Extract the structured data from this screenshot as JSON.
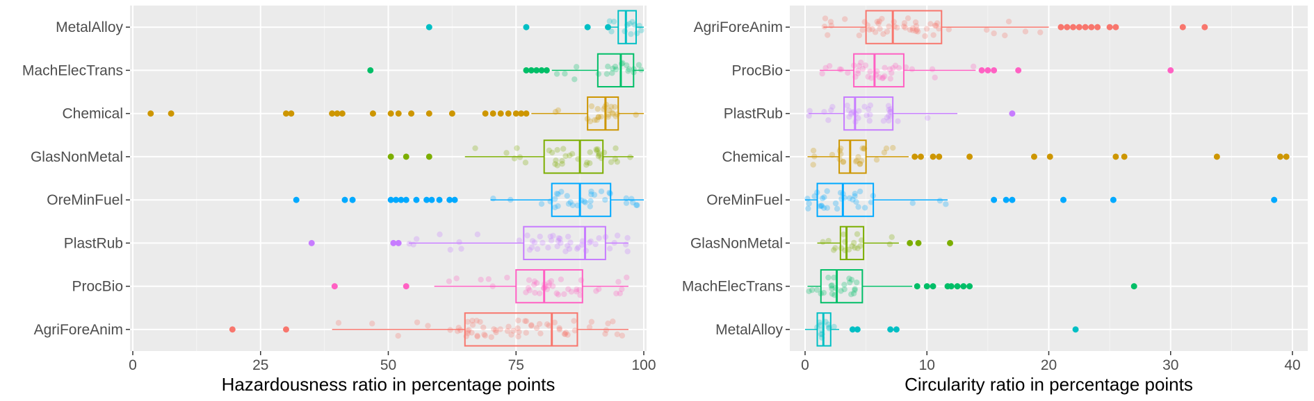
{
  "colors": {
    "panel_bg": "#ebebeb",
    "grid_major": "#ffffff",
    "grid_minor": "#f5f5f5",
    "tick_text": "#4d4d4d",
    "AgriForeAnim": "#f8766d",
    "ProcBio": "#ff61c3",
    "PlastRub": "#c77cff",
    "OreMinFuel": "#00a9ff",
    "GlasNonMetal": "#7cae00",
    "Chemical": "#cd9600",
    "MachElecTrans": "#00be67",
    "MetalAlloy": "#00bfc4"
  },
  "chart_data": [
    {
      "type": "boxplot",
      "xlabel": "Hazardousness ratio in percentage points",
      "ylabel": "",
      "xlim": [
        0,
        100
      ],
      "xticks": [
        0,
        25,
        50,
        75,
        100
      ],
      "grid": true,
      "legend": "none",
      "categories": [
        "MetalAlloy",
        "MachElecTrans",
        "Chemical",
        "GlasNonMetal",
        "OreMinFuel",
        "PlastRub",
        "ProcBio",
        "AgriForeAnim"
      ],
      "boxes": [
        {
          "category": "MetalAlloy",
          "whisker_low": 93,
          "q1": 95,
          "median": 96.5,
          "q3": 98.5,
          "whisker_high": 100,
          "outliers": [
            58,
            77,
            89,
            93
          ]
        },
        {
          "category": "MachElecTrans",
          "whisker_low": 82,
          "q1": 91,
          "median": 95.5,
          "q3": 98,
          "whisker_high": 100,
          "outliers": [
            46.5,
            77,
            78,
            79,
            80,
            81
          ]
        },
        {
          "category": "Chemical",
          "whisker_low": 78,
          "q1": 89,
          "median": 92.5,
          "q3": 95,
          "whisker_high": 100,
          "outliers": [
            3.5,
            7.5,
            30,
            31,
            39,
            40,
            41,
            47,
            50.5,
            52,
            54.5,
            58,
            62.5,
            69,
            70.5,
            72,
            73.5,
            75,
            76,
            77
          ]
        },
        {
          "category": "GlasNonMetal",
          "whisker_low": 65,
          "q1": 80.5,
          "median": 87.5,
          "q3": 92,
          "whisker_high": 98,
          "outliers": [
            50.5,
            53.5,
            58
          ]
        },
        {
          "category": "OreMinFuel",
          "whisker_low": 70,
          "q1": 82,
          "median": 87.5,
          "q3": 93.5,
          "whisker_high": 100,
          "outliers": [
            32,
            41.5,
            43,
            50.5,
            51.5,
            52.5,
            53.5,
            55.5,
            57.5,
            58.5,
            60,
            62,
            63
          ]
        },
        {
          "category": "PlastRub",
          "whisker_low": 54,
          "q1": 76.5,
          "median": 88.5,
          "q3": 92.5,
          "whisker_high": 97,
          "outliers": [
            35,
            51,
            52
          ]
        },
        {
          "category": "ProcBio",
          "whisker_low": 59,
          "q1": 75,
          "median": 80.5,
          "q3": 88,
          "whisker_high": 97,
          "outliers": [
            39.5,
            53.5
          ]
        },
        {
          "category": "AgriForeAnim",
          "whisker_low": 39,
          "q1": 65,
          "median": 82,
          "q3": 87,
          "whisker_high": 97,
          "outliers": [
            19.5,
            30
          ]
        }
      ]
    },
    {
      "type": "boxplot",
      "xlabel": "Circularity ratio in percentage points",
      "ylabel": "",
      "xlim": [
        0,
        40
      ],
      "xticks": [
        0,
        10,
        20,
        30,
        40
      ],
      "grid": true,
      "legend": "none",
      "categories": [
        "AgriForeAnim",
        "ProcBio",
        "PlastRub",
        "Chemical",
        "OreMinFuel",
        "GlasNonMetal",
        "MachElecTrans",
        "MetalAlloy"
      ],
      "boxes": [
        {
          "category": "AgriForeAnim",
          "whisker_low": 1.5,
          "q1": 5,
          "median": 7.2,
          "q3": 11.2,
          "whisker_high": 20,
          "outliers": [
            21,
            21.5,
            22,
            22.5,
            23,
            23.5,
            24,
            25,
            25.5,
            31,
            32.8
          ]
        },
        {
          "category": "ProcBio",
          "whisker_low": 1.2,
          "q1": 4,
          "median": 5.7,
          "q3": 8.1,
          "whisker_high": 14,
          "outliers": [
            14.5,
            15,
            15.5,
            17.5,
            30
          ]
        },
        {
          "category": "PlastRub",
          "whisker_low": 0.3,
          "q1": 3.2,
          "median": 4.1,
          "q3": 7.2,
          "whisker_high": 12.5,
          "outliers": [
            17
          ]
        },
        {
          "category": "Chemical",
          "whisker_low": 0.2,
          "q1": 2.8,
          "median": 3.7,
          "q3": 5,
          "whisker_high": 8.5,
          "outliers": [
            9,
            9.5,
            10.5,
            11,
            13.5,
            18.8,
            20.1,
            25.5,
            26.2,
            33.8,
            39,
            39.5
          ]
        },
        {
          "category": "OreMinFuel",
          "whisker_low": 0,
          "q1": 1,
          "median": 3.1,
          "q3": 5.6,
          "whisker_high": 11.7,
          "outliers": [
            15.5,
            16.5,
            17,
            21.2,
            25.3,
            38.5
          ]
        },
        {
          "category": "GlasNonMetal",
          "whisker_low": 1,
          "q1": 2.9,
          "median": 3.4,
          "q3": 4.8,
          "whisker_high": 7.7,
          "outliers": [
            8.6,
            9.3,
            11.9
          ]
        },
        {
          "category": "MachElecTrans",
          "whisker_low": 0.2,
          "q1": 1.3,
          "median": 2.6,
          "q3": 4.7,
          "whisker_high": 8.8,
          "outliers": [
            9.2,
            10,
            10.5,
            11.7,
            12,
            12.5,
            13,
            13.5,
            27
          ]
        },
        {
          "category": "MetalAlloy",
          "whisker_low": 0,
          "q1": 1,
          "median": 1.5,
          "q3": 2.1,
          "whisker_high": 2.8,
          "outliers": [
            3.9,
            4.3,
            7,
            7.5,
            22.2
          ]
        }
      ]
    }
  ]
}
